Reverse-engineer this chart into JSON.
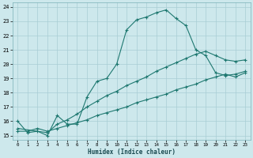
{
  "xlabel": "Humidex (Indice chaleur)",
  "xlim": [
    -0.5,
    23.5
  ],
  "ylim": [
    14.7,
    24.3
  ],
  "xticks": [
    0,
    1,
    2,
    3,
    4,
    5,
    6,
    7,
    8,
    9,
    10,
    11,
    12,
    13,
    14,
    15,
    16,
    17,
    18,
    19,
    20,
    21,
    22,
    23
  ],
  "yticks": [
    15,
    16,
    17,
    18,
    19,
    20,
    21,
    22,
    23,
    24
  ],
  "bg_color": "#cde8ec",
  "grid_color": "#a8cdd4",
  "line_color": "#1e7870",
  "line1_x": [
    0,
    1,
    2,
    3,
    4,
    5,
    6,
    7,
    8,
    9,
    10,
    11,
    12,
    13,
    14,
    15,
    16,
    17,
    18,
    19,
    20,
    21,
    22,
    23
  ],
  "line1_y": [
    16.0,
    15.2,
    15.3,
    15.0,
    16.4,
    15.8,
    15.8,
    17.7,
    18.8,
    19.0,
    20.0,
    22.4,
    23.1,
    23.3,
    23.6,
    23.8,
    23.2,
    22.7,
    21.0,
    20.6,
    19.4,
    19.2,
    19.3,
    19.5
  ],
  "line2_x": [
    0,
    3,
    4,
    5,
    6,
    7,
    8,
    9,
    10,
    11,
    12,
    13,
    14,
    15,
    16,
    17,
    18,
    19,
    20,
    21,
    22,
    23
  ],
  "line2_y": [
    15.5,
    15.2,
    15.8,
    16.1,
    16.5,
    17.0,
    17.4,
    17.8,
    18.1,
    18.5,
    18.8,
    19.1,
    19.5,
    19.8,
    20.1,
    20.4,
    20.7,
    20.9,
    20.6,
    20.3,
    20.2,
    20.3
  ],
  "line3_x": [
    0,
    1,
    2,
    3,
    4,
    5,
    6,
    7,
    8,
    9,
    10,
    11,
    12,
    13,
    14,
    15,
    16,
    17,
    18,
    19,
    20,
    21,
    22,
    23
  ],
  "line3_y": [
    15.3,
    15.3,
    15.5,
    15.3,
    15.5,
    15.7,
    15.9,
    16.1,
    16.4,
    16.6,
    16.8,
    17.0,
    17.3,
    17.5,
    17.7,
    17.9,
    18.2,
    18.4,
    18.6,
    18.9,
    19.1,
    19.3,
    19.1,
    19.4
  ]
}
